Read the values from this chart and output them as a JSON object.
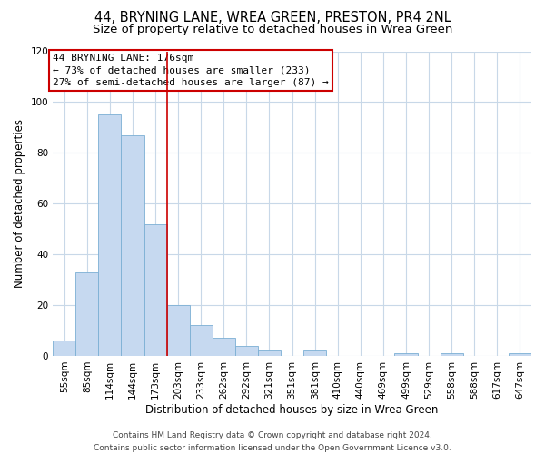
{
  "title": "44, BRYNING LANE, WREA GREEN, PRESTON, PR4 2NL",
  "subtitle": "Size of property relative to detached houses in Wrea Green",
  "bar_labels": [
    "55sqm",
    "85sqm",
    "114sqm",
    "144sqm",
    "173sqm",
    "203sqm",
    "233sqm",
    "262sqm",
    "292sqm",
    "321sqm",
    "351sqm",
    "381sqm",
    "410sqm",
    "440sqm",
    "469sqm",
    "499sqm",
    "529sqm",
    "558sqm",
    "588sqm",
    "617sqm",
    "647sqm"
  ],
  "bar_values": [
    6,
    33,
    95,
    87,
    52,
    20,
    12,
    7,
    4,
    2,
    0,
    2,
    0,
    0,
    0,
    1,
    0,
    1,
    0,
    0,
    1
  ],
  "bar_color": "#c6d9f0",
  "bar_edge_color": "#7bafd4",
  "vline_x_index": 4,
  "vline_color": "#cc0000",
  "annotation_box_text": "44 BRYNING LANE: 176sqm\n← 73% of detached houses are smaller (233)\n27% of semi-detached houses are larger (87) →",
  "xlabel": "Distribution of detached houses by size in Wrea Green",
  "ylabel": "Number of detached properties",
  "ylim": [
    0,
    120
  ],
  "yticks": [
    0,
    20,
    40,
    60,
    80,
    100,
    120
  ],
  "footer_line1": "Contains HM Land Registry data © Crown copyright and database right 2024.",
  "footer_line2": "Contains public sector information licensed under the Open Government Licence v3.0.",
  "bg_color": "#ffffff",
  "grid_color": "#c8d8e8",
  "title_fontsize": 10.5,
  "subtitle_fontsize": 9.5,
  "axis_label_fontsize": 8.5,
  "tick_fontsize": 7.5,
  "annotation_fontsize": 8,
  "footer_fontsize": 6.5
}
